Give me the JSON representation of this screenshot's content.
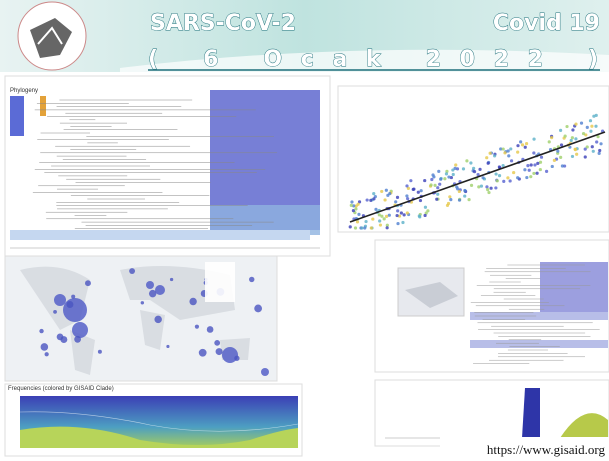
{
  "header": {
    "title_left": "SARS-CoV-2",
    "title_right": "Covid 19",
    "date": "( 6 Ocak 2022 )"
  },
  "panels": {
    "phylogeny": "Phylogeny",
    "frequencies": "Frequencies (colored by GISAID Clade)"
  },
  "footer": {
    "url": "https://www.gisaid.org"
  }
}
